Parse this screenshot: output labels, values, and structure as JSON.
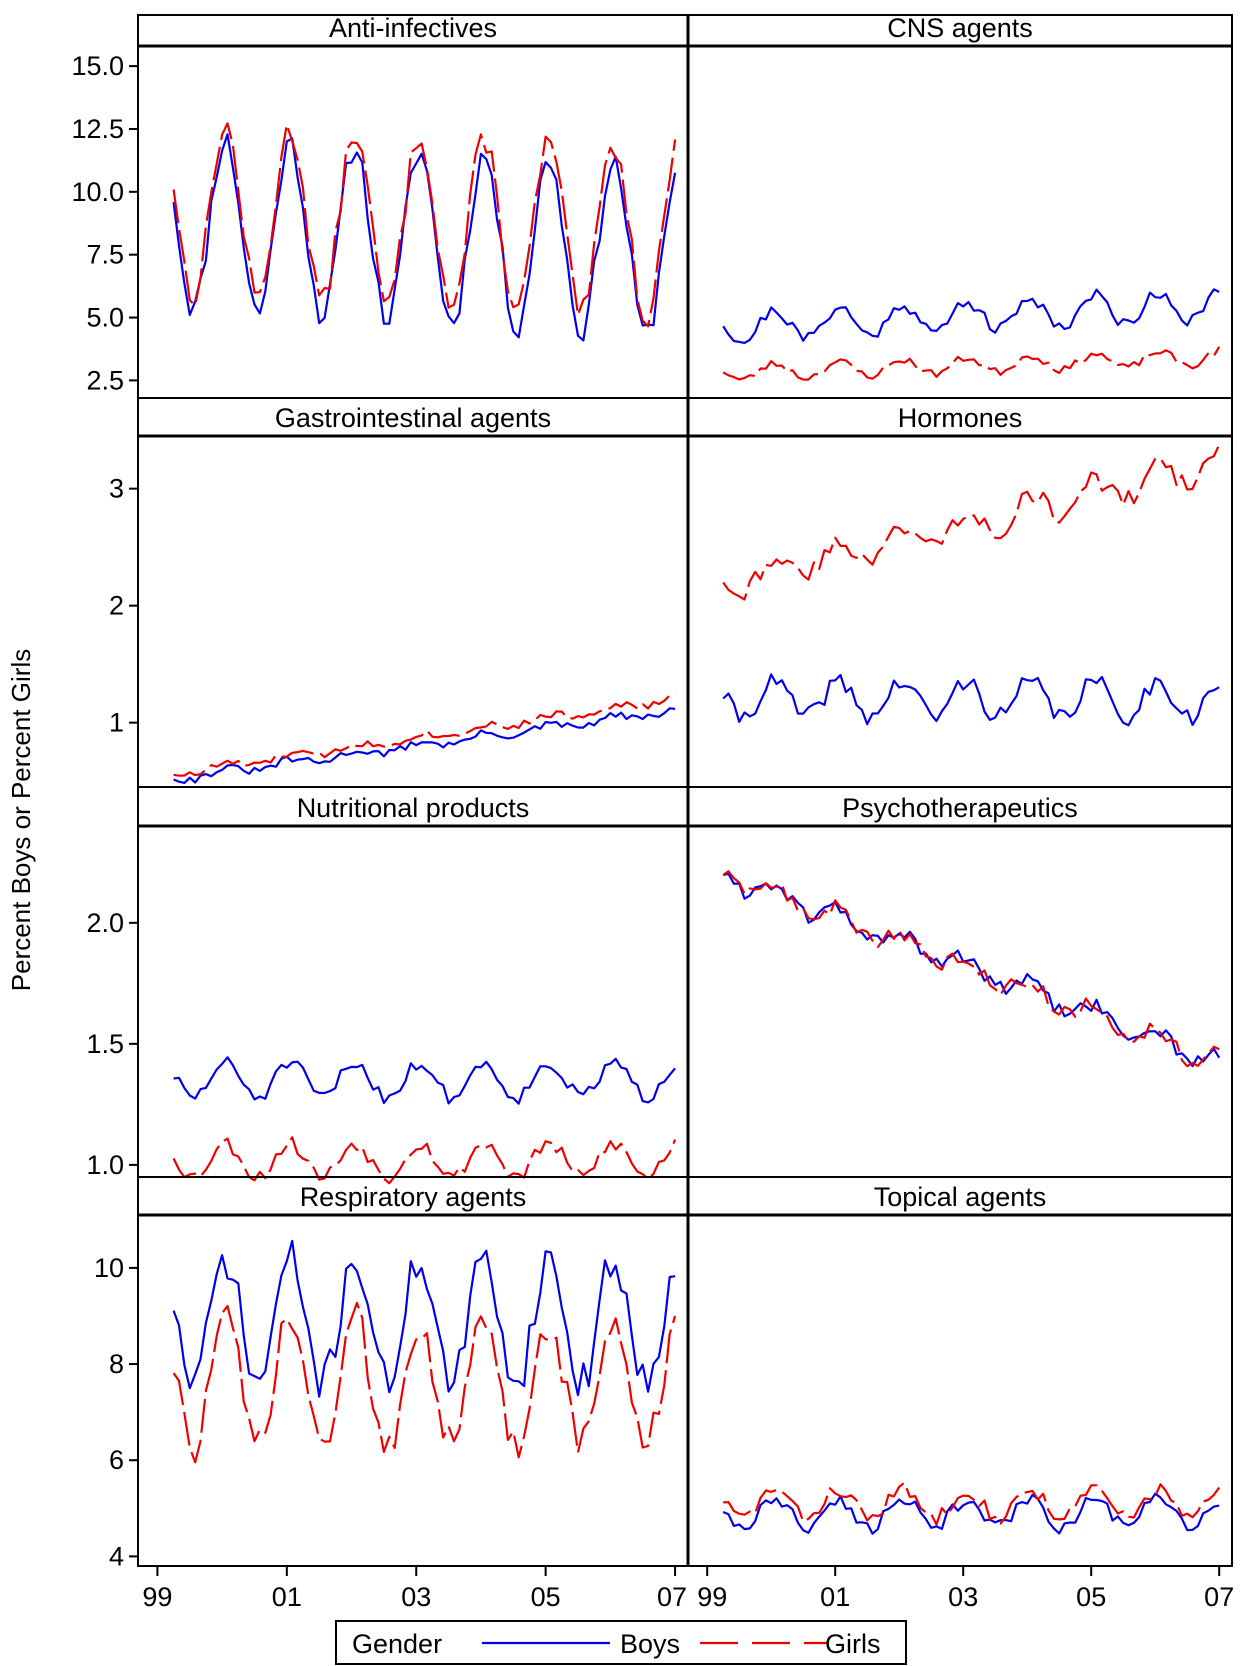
{
  "chart_data": {
    "type": "line",
    "ylabel": "Percent Boys or Percent Girls",
    "x_tick_labels": [
      "99",
      "01",
      "03",
      "05",
      "07"
    ],
    "x_tick_values": [
      1999,
      2001,
      2003,
      2005,
      2007
    ],
    "xlim": [
      1998.7,
      2007.2
    ],
    "legend": {
      "title": "Gender",
      "placement": "bottom-center",
      "entries": [
        {
          "name": "Boys",
          "color": "#0000ee",
          "dash": "solid"
        },
        {
          "name": "Girls",
          "color": "#ee0000",
          "dash": "dashed"
        }
      ]
    },
    "panels": [
      {
        "title": "Anti-infectives",
        "column": "left",
        "row": 0,
        "ylim": [
          1.8,
          15.8
        ],
        "yticks": [
          2.5,
          5.0,
          7.5,
          10.0,
          12.5,
          15.0
        ],
        "ytick_labels": [
          "2.5",
          "5.0",
          "7.5",
          "10.0",
          "12.5",
          "15.0"
        ],
        "boys": {
          "base": 8.8,
          "trend": -0.15,
          "amp": 3.4,
          "noise": 0.5,
          "seed": 11
        },
        "girls": {
          "base": 9.3,
          "trend": -0.12,
          "amp": 3.4,
          "noise": 0.5,
          "seed": 13
        }
      },
      {
        "title": "CNS agents",
        "column": "right",
        "row": 0,
        "ylim": [
          1.8,
          15.8
        ],
        "yticks": [
          2.5,
          5.0,
          7.5,
          10.0,
          12.5,
          15.0
        ],
        "ytick_labels": [],
        "boys": {
          "base": 4.6,
          "trend": 0.12,
          "amp": 0.6,
          "noise": 0.25,
          "seed": 21
        },
        "girls": {
          "base": 2.8,
          "trend": 0.08,
          "amp": 0.3,
          "noise": 0.15,
          "seed": 23
        }
      },
      {
        "title": "Gastrointestinal agents",
        "column": "left",
        "row": 1,
        "ylim": [
          0.45,
          3.45
        ],
        "yticks": [
          1,
          2,
          3
        ],
        "ytick_labels": [
          "1",
          "2",
          "3"
        ],
        "boys": {
          "base": 0.52,
          "trend": 0.075,
          "amp": 0.03,
          "noise": 0.03,
          "seed": 31
        },
        "girls": {
          "base": 0.56,
          "trend": 0.083,
          "amp": 0.03,
          "noise": 0.03,
          "seed": 33
        }
      },
      {
        "title": "Hormones",
        "column": "right",
        "row": 1,
        "ylim": [
          0.45,
          3.45
        ],
        "yticks": [
          1,
          2,
          3
        ],
        "ytick_labels": [],
        "boys": {
          "base": 1.2,
          "trend": 0.0,
          "amp": 0.15,
          "noise": 0.08,
          "seed": 41
        },
        "girls": {
          "base": 2.2,
          "trend": 0.13,
          "amp": 0.12,
          "noise": 0.08,
          "seed": 43
        }
      },
      {
        "title": "Nutritional products",
        "column": "left",
        "row": 2,
        "ylim": [
          0.95,
          2.4
        ],
        "yticks": [
          1.0,
          1.5,
          2.0
        ],
        "ytick_labels": [
          "1.0",
          "1.5",
          "2.0"
        ],
        "boys": {
          "base": 1.35,
          "trend": 0.0,
          "amp": 0.07,
          "noise": 0.03,
          "seed": 51
        },
        "girls": {
          "base": 1.02,
          "trend": 0.0,
          "amp": 0.07,
          "noise": 0.03,
          "seed": 53
        }
      },
      {
        "title": "Psychotherapeutics",
        "column": "right",
        "row": 2,
        "ylim": [
          0.95,
          2.4
        ],
        "yticks": [
          1.0,
          1.5,
          2.0
        ],
        "ytick_labels": [],
        "boys": {
          "base": 2.2,
          "trend": -0.1,
          "amp": 0.04,
          "noise": 0.03,
          "seed": 61
        },
        "girls": {
          "base": 2.2,
          "trend": -0.1,
          "amp": 0.04,
          "noise": 0.03,
          "seed": 63
        }
      },
      {
        "title": "Respiratory agents",
        "column": "left",
        "row": 3,
        "ylim": [
          3.8,
          11.1
        ],
        "yticks": [
          4,
          6,
          8,
          10
        ],
        "ytick_labels": [
          "4",
          "6",
          "8",
          "10"
        ],
        "boys": {
          "base": 8.9,
          "trend": 0.0,
          "amp": 1.3,
          "noise": 0.4,
          "seed": 71
        },
        "girls": {
          "base": 7.6,
          "trend": 0.0,
          "amp": 1.3,
          "noise": 0.4,
          "seed": 73
        }
      },
      {
        "title": "Topical agents",
        "column": "right",
        "row": 3,
        "ylim": [
          3.8,
          11.1
        ],
        "yticks": [
          4,
          6,
          8,
          10
        ],
        "ytick_labels": [],
        "boys": {
          "base": 4.9,
          "trend": 0.0,
          "amp": 0.3,
          "noise": 0.15,
          "seed": 81
        },
        "girls": {
          "base": 5.1,
          "trend": 0.0,
          "amp": 0.3,
          "noise": 0.15,
          "seed": 83
        }
      }
    ]
  }
}
